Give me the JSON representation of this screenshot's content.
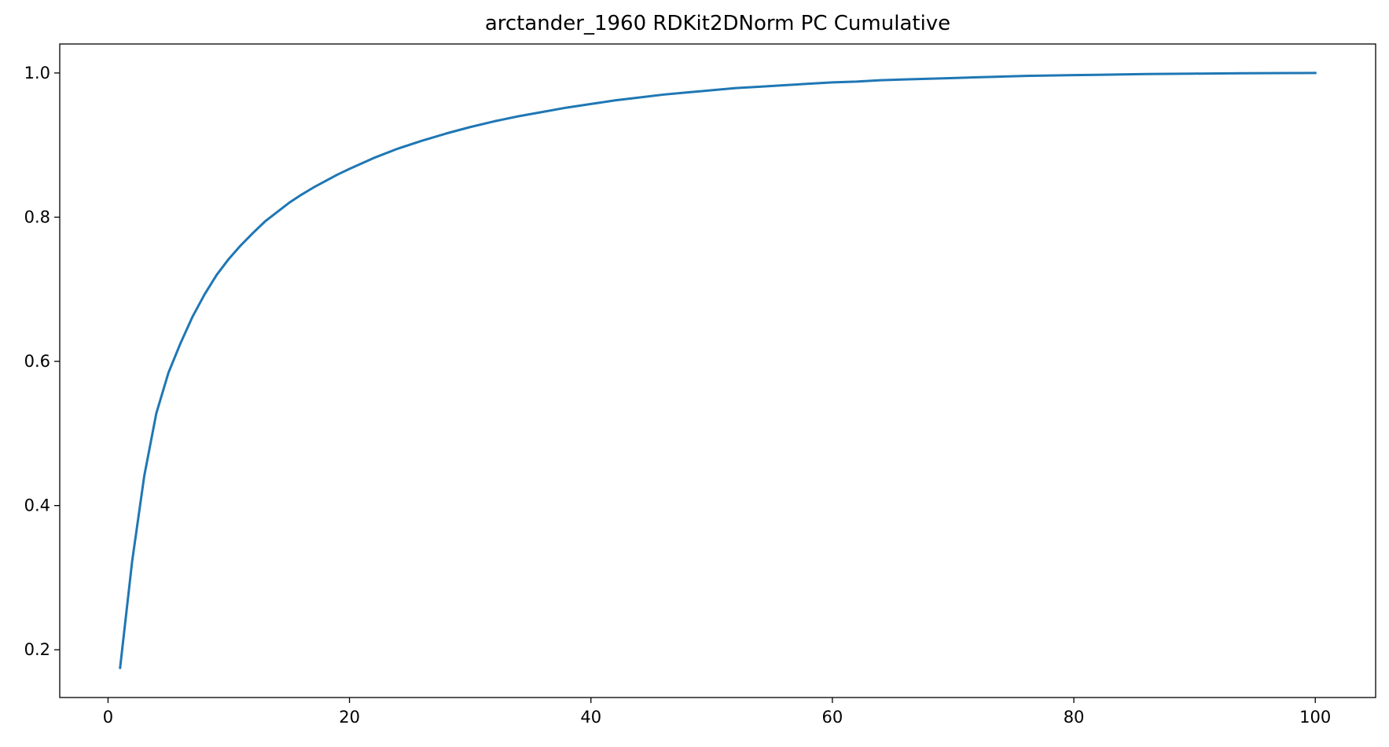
{
  "chart_data": {
    "type": "line",
    "title": "arctander_1960 RDKit2DNorm PC Cumulative",
    "xlabel": "",
    "ylabel": "",
    "xlim": [
      -4.0,
      105.0
    ],
    "ylim": [
      0.1338,
      1.0402
    ],
    "x_ticks": [
      0,
      20,
      40,
      60,
      80,
      100
    ],
    "x_tick_labels": [
      "0",
      "20",
      "40",
      "60",
      "80",
      "100"
    ],
    "y_ticks": [
      0.2,
      0.4,
      0.6,
      0.8,
      1.0
    ],
    "y_tick_labels": [
      "0.2",
      "0.4",
      "0.6",
      "0.8",
      "1.0"
    ],
    "grid": false,
    "legend": "none",
    "series": [
      {
        "color": "#1f77b4",
        "x": [
          1,
          2,
          3,
          4,
          5,
          6,
          7,
          8,
          9,
          10,
          11,
          12,
          13,
          14,
          15,
          16,
          17,
          18,
          19,
          20,
          22,
          24,
          26,
          28,
          30,
          32,
          34,
          36,
          38,
          40,
          42,
          44,
          46,
          48,
          50,
          52,
          54,
          56,
          58,
          60,
          62,
          64,
          66,
          68,
          70,
          72,
          74,
          76,
          78,
          80,
          82,
          84,
          86,
          88,
          90,
          92,
          94,
          96,
          98,
          100
        ],
        "y": [
          0.175,
          0.323,
          0.441,
          0.528,
          0.584,
          0.625,
          0.662,
          0.693,
          0.72,
          0.742,
          0.761,
          0.778,
          0.794,
          0.807,
          0.82,
          0.831,
          0.841,
          0.85,
          0.859,
          0.867,
          0.882,
          0.895,
          0.906,
          0.916,
          0.925,
          0.933,
          0.94,
          0.946,
          0.952,
          0.957,
          0.962,
          0.966,
          0.97,
          0.973,
          0.976,
          0.979,
          0.981,
          0.983,
          0.985,
          0.987,
          0.988,
          0.99,
          0.991,
          0.992,
          0.993,
          0.994,
          0.995,
          0.996,
          0.9965,
          0.997,
          0.9975,
          0.998,
          0.9985,
          0.9988,
          0.9991,
          0.9994,
          0.9996,
          0.9998,
          0.9999,
          1.0
        ]
      }
    ]
  }
}
